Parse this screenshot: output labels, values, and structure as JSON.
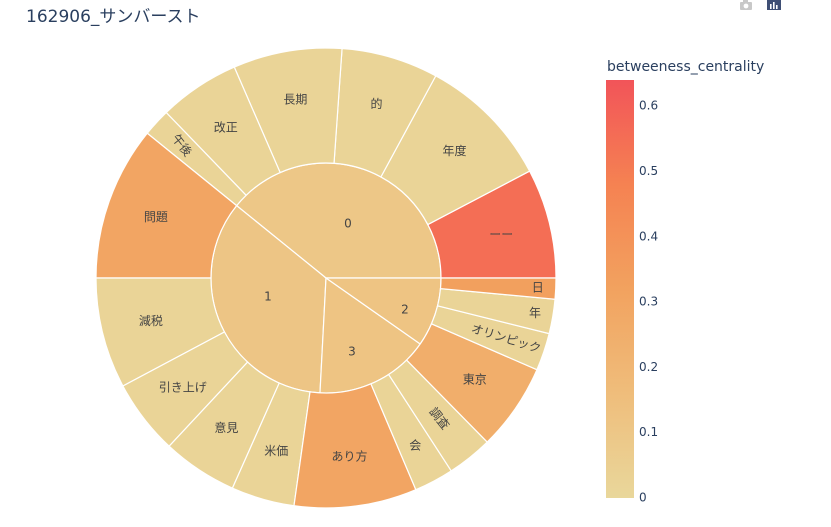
{
  "title": "162906_サンバースト",
  "toolbar": {
    "icons": [
      "camera-icon",
      "plotly-logo-icon"
    ]
  },
  "colorbar": {
    "title": "betweeness_centrality",
    "ticks": [
      "0",
      "0.1",
      "0.2",
      "0.3",
      "0.4",
      "0.5",
      "0.6"
    ],
    "range": [
      0,
      0.64
    ],
    "colors": [
      "#e9d79b",
      "#efbd7b",
      "#f2a25f",
      "#f58252",
      "#f25459"
    ]
  },
  "chart_data": {
    "type": "sunburst",
    "title": "162906_サンバースト",
    "color_scale_label": "betweeness_centrality",
    "parents": [
      {
        "label": "0",
        "value": 0.1,
        "children": [
          {
            "label": "ーー",
            "value": 0.55
          },
          {
            "label": "年度",
            "value": 0.02
          },
          {
            "label": "的",
            "value": 0.02
          },
          {
            "label": "長期",
            "value": 0.02
          },
          {
            "label": "改正",
            "value": 0.02
          },
          {
            "label": "午後",
            "value": 0.02
          }
        ]
      },
      {
        "label": "1",
        "value": 0.11,
        "children": [
          {
            "label": "問題",
            "value": 0.3
          },
          {
            "label": "減税",
            "value": 0.02
          },
          {
            "label": "引き上げ",
            "value": 0.02
          },
          {
            "label": "意見",
            "value": 0.02
          },
          {
            "label": "米価",
            "value": 0.02
          }
        ]
      },
      {
        "label": "3",
        "value": 0.12,
        "children": [
          {
            "label": "あり方",
            "value": 0.3
          },
          {
            "label": "会",
            "value": 0.02
          },
          {
            "label": "調査",
            "value": 0.02
          }
        ]
      },
      {
        "label": "2",
        "value": 0.12,
        "children": [
          {
            "label": "東京",
            "value": 0.25
          },
          {
            "label": "オリンピック",
            "value": 0.02
          },
          {
            "label": "年",
            "value": 0.02
          },
          {
            "label": "日",
            "value": 0.33
          }
        ]
      }
    ]
  }
}
